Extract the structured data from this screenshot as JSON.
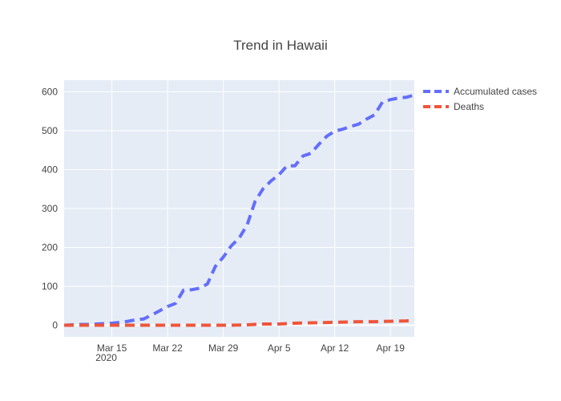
{
  "chart_data": {
    "type": "line",
    "title": "Trend in Hawaii",
    "xlabel": "",
    "ylabel": "",
    "x_range": [
      "2020-03-09",
      "2020-04-22"
    ],
    "ylim": [
      -30,
      630
    ],
    "y_ticks": [
      0,
      100,
      200,
      300,
      400,
      500,
      600
    ],
    "x_ticks": [
      {
        "date": "2020-03-15",
        "label": "Mar 15",
        "sublabel": "2020"
      },
      {
        "date": "2020-03-22",
        "label": "Mar 22"
      },
      {
        "date": "2020-03-29",
        "label": "Mar 29"
      },
      {
        "date": "2020-04-05",
        "label": "Apr 5"
      },
      {
        "date": "2020-04-12",
        "label": "Apr 12"
      },
      {
        "date": "2020-04-19",
        "label": "Apr 19"
      }
    ],
    "grid": true,
    "legend_position": "top-right",
    "series": [
      {
        "name": "Accumulated cases",
        "color": "#636efa",
        "dash": "dash",
        "points": [
          [
            "2020-03-09",
            0
          ],
          [
            "2020-03-10",
            1
          ],
          [
            "2020-03-11",
            2
          ],
          [
            "2020-03-12",
            2
          ],
          [
            "2020-03-13",
            3
          ],
          [
            "2020-03-14",
            4
          ],
          [
            "2020-03-15",
            5
          ],
          [
            "2020-03-16",
            7
          ],
          [
            "2020-03-17",
            10
          ],
          [
            "2020-03-18",
            14
          ],
          [
            "2020-03-19",
            16
          ],
          [
            "2020-03-20",
            26
          ],
          [
            "2020-03-21",
            37
          ],
          [
            "2020-03-22",
            48
          ],
          [
            "2020-03-23",
            56
          ],
          [
            "2020-03-24",
            90
          ],
          [
            "2020-03-25",
            91
          ],
          [
            "2020-03-26",
            95
          ],
          [
            "2020-03-27",
            106
          ],
          [
            "2020-03-28",
            151
          ],
          [
            "2020-03-29",
            175
          ],
          [
            "2020-03-30",
            204
          ],
          [
            "2020-03-31",
            224
          ],
          [
            "2020-04-01",
            258
          ],
          [
            "2020-04-02",
            319
          ],
          [
            "2020-04-03",
            351
          ],
          [
            "2020-04-04",
            371
          ],
          [
            "2020-04-05",
            387
          ],
          [
            "2020-04-06",
            410
          ],
          [
            "2020-04-07",
            410
          ],
          [
            "2020-04-08",
            435
          ],
          [
            "2020-04-09",
            442
          ],
          [
            "2020-04-10",
            465
          ],
          [
            "2020-04-11",
            486
          ],
          [
            "2020-04-12",
            499
          ],
          [
            "2020-04-13",
            504
          ],
          [
            "2020-04-14",
            511
          ],
          [
            "2020-04-15",
            517
          ],
          [
            "2020-04-16",
            530
          ],
          [
            "2020-04-17",
            541
          ],
          [
            "2020-04-18",
            574
          ],
          [
            "2020-04-19",
            580
          ],
          [
            "2020-04-20",
            584
          ],
          [
            "2020-04-21",
            586
          ],
          [
            "2020-04-22",
            592
          ]
        ]
      },
      {
        "name": "Deaths",
        "color": "#ef553b",
        "dash": "dash",
        "points": [
          [
            "2020-03-09",
            0
          ],
          [
            "2020-03-16",
            0
          ],
          [
            "2020-03-23",
            0
          ],
          [
            "2020-03-30",
            0
          ],
          [
            "2020-04-01",
            1
          ],
          [
            "2020-04-03",
            3
          ],
          [
            "2020-04-05",
            3
          ],
          [
            "2020-04-07",
            5
          ],
          [
            "2020-04-09",
            6
          ],
          [
            "2020-04-11",
            7
          ],
          [
            "2020-04-13",
            8
          ],
          [
            "2020-04-15",
            9
          ],
          [
            "2020-04-17",
            9
          ],
          [
            "2020-04-19",
            10
          ],
          [
            "2020-04-21",
            11
          ],
          [
            "2020-04-22",
            12
          ]
        ]
      }
    ]
  }
}
